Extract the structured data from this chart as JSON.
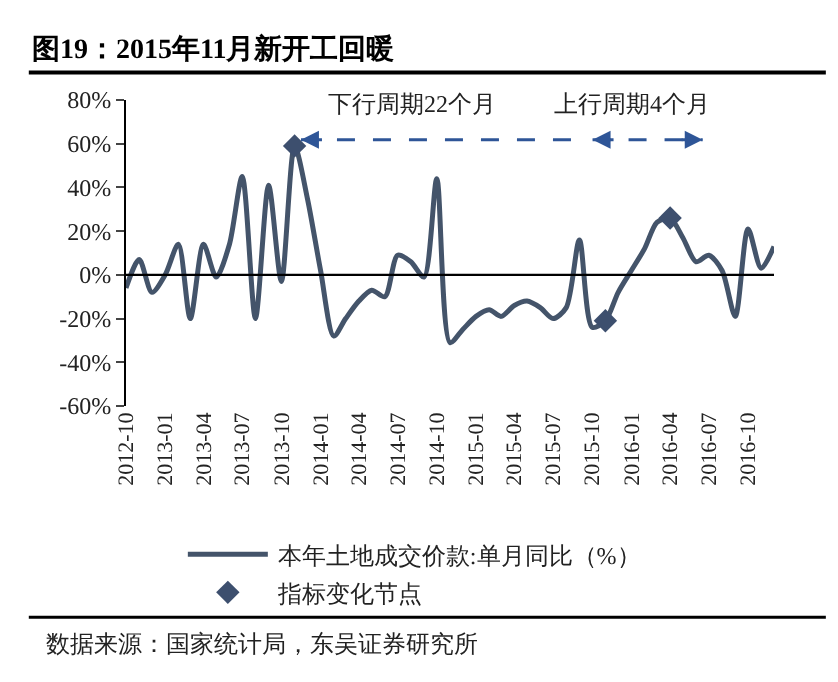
{
  "chart_data": {
    "type": "line",
    "title": "图19：2015年11月新开工回暖",
    "x": [
      "2012-10",
      "2012-11",
      "2012-12",
      "2013-01",
      "2013-02",
      "2013-03",
      "2013-04",
      "2013-05",
      "2013-06",
      "2013-07",
      "2013-08",
      "2013-09",
      "2013-10",
      "2013-11",
      "2013-12",
      "2014-01",
      "2014-02",
      "2014-03",
      "2014-04",
      "2014-05",
      "2014-06",
      "2014-07",
      "2014-08",
      "2014-09",
      "2014-10",
      "2014-11",
      "2014-12",
      "2015-01",
      "2015-02",
      "2015-03",
      "2015-04",
      "2015-05",
      "2015-06",
      "2015-07",
      "2015-08",
      "2015-09",
      "2015-10",
      "2015-11",
      "2015-12",
      "2016-01",
      "2016-02",
      "2016-03",
      "2016-04",
      "2016-05",
      "2016-06",
      "2016-07",
      "2016-08",
      "2016-09",
      "2016-10",
      "2016-11",
      "2016-12"
    ],
    "series": [
      {
        "name": "本年土地成交价款:单月同比（%）",
        "color": "#44546a",
        "values": [
          -6,
          7,
          -8,
          0,
          14,
          -20,
          14,
          -1,
          14,
          45,
          -20,
          41,
          -3,
          59,
          35,
          2,
          -28,
          -20,
          -12,
          -7,
          -10,
          9,
          6,
          -1,
          44,
          -31,
          -25,
          -19,
          -16,
          -19,
          -14,
          -12,
          -15,
          -20,
          -15,
          16,
          -24,
          -21,
          -8,
          2,
          12,
          24,
          26,
          17,
          6,
          9,
          2,
          -19,
          21,
          3,
          13
        ]
      },
      {
        "name": "指标变化节点",
        "type": "scatter",
        "marker": "diamond",
        "color": "#3d4f6e",
        "x": [
          "2013-11",
          "2015-11",
          "2016-04"
        ],
        "values": [
          59,
          -21,
          26
        ]
      }
    ],
    "xlim": [
      "2012-10",
      "2016-12"
    ],
    "xticks": [
      "2012-10",
      "2013-01",
      "2013-04",
      "2013-07",
      "2013-10",
      "2014-01",
      "2014-04",
      "2014-07",
      "2014-10",
      "2015-01",
      "2015-04",
      "2015-07",
      "2015-10",
      "2016-01",
      "2016-04",
      "2016-07",
      "2016-10"
    ],
    "ylim": [
      -60,
      80
    ],
    "yticks": [
      {
        "value": -60,
        "label": "-60%"
      },
      {
        "value": -40,
        "label": "-40%"
      },
      {
        "value": -20,
        "label": "-20%"
      },
      {
        "value": 0,
        "label": "0%"
      },
      {
        "value": 20,
        "label": "20%"
      },
      {
        "value": 40,
        "label": "40%"
      },
      {
        "value": 60,
        "label": "60%"
      },
      {
        "value": 80,
        "label": "80%"
      }
    ],
    "annotations": [
      "下行周期22个月",
      "上行周期4个月",
      "数据来源：国家统计局，东吴证券研究所"
    ],
    "ref_lines": [
      {
        "axis": "y",
        "value": 0,
        "color": "#000000"
      }
    ],
    "legend": "bottom"
  }
}
